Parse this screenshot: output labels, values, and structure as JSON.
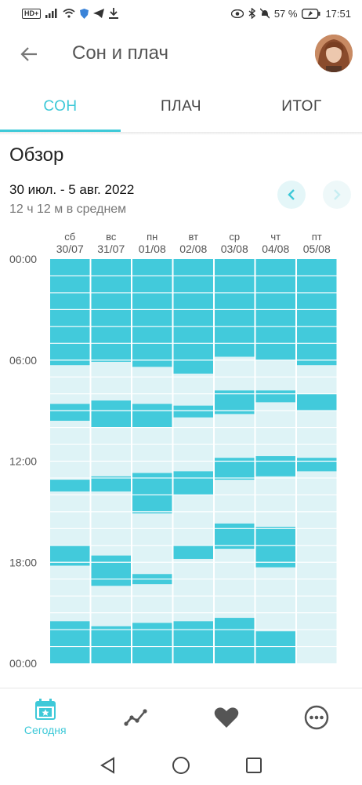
{
  "status": {
    "battery": "57 %",
    "time": "17:51"
  },
  "header": {
    "title": "Сон и плач"
  },
  "tabs": [
    {
      "label": "СОН",
      "active": true
    },
    {
      "label": "ПЛАЧ",
      "active": false
    },
    {
      "label": "ИТОГ",
      "active": false
    }
  ],
  "overview": {
    "title": "Обзор",
    "date_range": "30 июл. - 5 авг. 2022",
    "average": "12 ч 12 м в среднем"
  },
  "colors": {
    "accent": "#3ec9d8",
    "sleep": "#42cadb",
    "awake": "#def3f6"
  },
  "chart_data": {
    "type": "bar",
    "orientation": "vertical-timeline",
    "y_tick_labels": [
      "00:00",
      "06:00",
      "12:00",
      "18:00",
      "00:00"
    ],
    "ylim_hours": [
      0,
      24
    ],
    "days": [
      {
        "dow": "сб",
        "date": "30/07",
        "sleep_hours": [
          [
            0,
            6.3
          ],
          [
            8.6,
            9.6
          ],
          [
            13.1,
            13.8
          ],
          [
            17.0,
            18.2
          ],
          [
            21.5,
            24
          ]
        ]
      },
      {
        "dow": "вс",
        "date": "31/07",
        "sleep_hours": [
          [
            0,
            6.1
          ],
          [
            8.4,
            10.0
          ],
          [
            12.9,
            13.8
          ],
          [
            17.6,
            19.4
          ],
          [
            21.8,
            24
          ]
        ]
      },
      {
        "dow": "пн",
        "date": "01/08",
        "sleep_hours": [
          [
            0,
            6.4
          ],
          [
            8.6,
            10.0
          ],
          [
            12.7,
            15.1
          ],
          [
            18.7,
            19.3
          ],
          [
            21.6,
            24
          ]
        ]
      },
      {
        "dow": "вт",
        "date": "02/08",
        "sleep_hours": [
          [
            0,
            6.8
          ],
          [
            8.7,
            9.4
          ],
          [
            12.6,
            14.0
          ],
          [
            17.0,
            17.8
          ],
          [
            21.5,
            24
          ]
        ]
      },
      {
        "dow": "ср",
        "date": "03/08",
        "sleep_hours": [
          [
            0,
            5.8
          ],
          [
            7.8,
            9.2
          ],
          [
            11.8,
            13.1
          ],
          [
            15.7,
            17.2
          ],
          [
            21.3,
            24
          ]
        ]
      },
      {
        "dow": "чт",
        "date": "04/08",
        "sleep_hours": [
          [
            0,
            6.0
          ],
          [
            7.8,
            8.5
          ],
          [
            11.7,
            12.9
          ],
          [
            15.9,
            18.3
          ],
          [
            22.1,
            24
          ]
        ]
      },
      {
        "dow": "пт",
        "date": "05/08",
        "sleep_hours": [
          [
            0,
            6.3
          ],
          [
            8.0,
            9.0
          ],
          [
            11.8,
            12.6
          ]
        ]
      }
    ]
  },
  "bottom_nav": {
    "today_label": "Сегодня",
    "items": [
      "calendar-star-icon",
      "trend-icon",
      "heart-icon",
      "more-icon"
    ]
  }
}
